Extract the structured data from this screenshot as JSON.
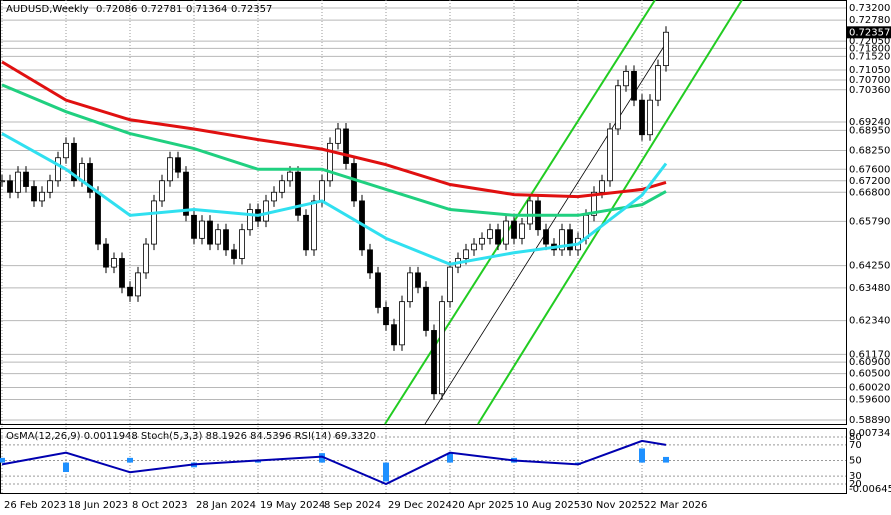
{
  "chart_data": {
    "type": "candlestick",
    "symbol": "AUDUSD,Weekly",
    "ohlc": [
      "0.72086",
      "0.72781",
      "0.71364",
      "0.72357"
    ],
    "close": [
      0.672,
      0.668,
      0.675,
      0.67,
      0.665,
      0.668,
      0.672,
      0.68,
      0.685,
      0.672,
      0.678,
      0.668,
      0.65,
      0.642,
      0.645,
      0.635,
      0.632,
      0.64,
      0.65,
      0.665,
      0.672,
      0.68,
      0.675,
      0.66,
      0.652,
      0.658,
      0.65,
      0.655,
      0.648,
      0.645,
      0.655,
      0.662,
      0.658,
      0.665,
      0.668,
      0.672,
      0.675,
      0.66,
      0.648,
      0.665,
      0.672,
      0.685,
      0.69,
      0.678,
      0.665,
      0.648,
      0.64,
      0.628,
      0.622,
      0.615,
      0.63,
      0.64,
      0.635,
      0.62,
      0.598,
      0.63,
      0.642,
      0.645,
      0.648,
      0.65,
      0.652,
      0.655,
      0.65,
      0.658,
      0.652,
      0.657,
      0.665,
      0.655,
      0.65,
      0.648,
      0.655,
      0.648,
      0.652,
      0.66,
      0.668,
      0.672,
      0.69,
      0.705,
      0.71,
      0.7,
      0.688,
      0.7,
      0.712,
      0.7236
    ],
    "ma_x": [
      0,
      8,
      16,
      24,
      32,
      40,
      48,
      56,
      64,
      72,
      80,
      83
    ],
    "moving_averages": [
      {
        "color": "#e01010",
        "values": [
          0.7133,
          0.7,
          0.6932,
          0.69,
          0.6863,
          0.683,
          0.6776,
          0.6707,
          0.6672,
          0.6665,
          0.669,
          0.6714
        ]
      },
      {
        "color": "#20d080",
        "values": [
          0.7053,
          0.696,
          0.6884,
          0.6832,
          0.676,
          0.676,
          0.669,
          0.662,
          0.66,
          0.66,
          0.6637,
          0.6683
        ]
      },
      {
        "color": "#30e0f0",
        "values": [
          0.6884,
          0.676,
          0.66,
          0.662,
          0.66,
          0.665,
          0.652,
          0.643,
          0.647,
          0.65,
          0.667,
          0.678
        ]
      }
    ],
    "ylim": [
      0.5875,
      0.7348
    ],
    "yticks": [
      {
        "value": 0.732,
        "label": "0.73200"
      },
      {
        "value": 0.7278,
        "label": "0.72780"
      },
      {
        "value": 0.7205,
        "label": "0.72050"
      },
      {
        "value": 0.718,
        "label": "0.71800"
      },
      {
        "value": 0.7152,
        "label": "0.71520"
      },
      {
        "value": 0.7105,
        "label": "0.71050"
      },
      {
        "value": 0.707,
        "label": "0.70700"
      },
      {
        "value": 0.7036,
        "label": "0.70360"
      },
      {
        "value": 0.6924,
        "label": "0.69240"
      },
      {
        "value": 0.6895,
        "label": "0.68950"
      },
      {
        "value": 0.6825,
        "label": "0.68250"
      },
      {
        "value": 0.676,
        "label": "0.67600"
      },
      {
        "value": 0.672,
        "label": "0.67200"
      },
      {
        "value": 0.668,
        "label": "0.66800"
      },
      {
        "value": 0.6579,
        "label": "0.65790"
      },
      {
        "value": 0.6425,
        "label": "0.64250"
      },
      {
        "value": 0.6348,
        "label": "0.63480"
      },
      {
        "value": 0.6234,
        "label": "0.62340"
      },
      {
        "value": 0.6117,
        "label": "0.61170"
      },
      {
        "value": 0.609,
        "label": "0.60900"
      },
      {
        "value": 0.605,
        "label": "0.60500"
      },
      {
        "value": 0.6002,
        "label": "0.60020"
      },
      {
        "value": 0.596,
        "label": "0.59600"
      },
      {
        "value": 0.5889,
        "label": "0.58890"
      }
    ],
    "xticks": [
      {
        "value": 0,
        "label": "26 Feb 2023"
      },
      {
        "value": 8,
        "label": "18 Jun 2023"
      },
      {
        "value": 16,
        "label": "8 Oct 2023"
      },
      {
        "value": 24,
        "label": "28 Jan 2024"
      },
      {
        "value": 32,
        "label": "19 May 2024"
      },
      {
        "value": 40,
        "label": "8 Sep 2024"
      },
      {
        "value": 48,
        "label": "29 Dec 2024"
      },
      {
        "value": 56,
        "label": "20 Apr 2025"
      },
      {
        "value": 64,
        "label": "10 Aug 2025"
      },
      {
        "value": 72,
        "label": "30 Nov 2025"
      },
      {
        "value": 80,
        "label": "22 Mar 2026"
      }
    ],
    "indicator_title": "OsMA(12,26,9) 0.0011948  Stoch(5,3,3) 88.1926 84.5396  RSI(14) 69.3320",
    "osma_lim": [
      -0.006457,
      0.0073408
    ],
    "osma_ticks": [
      0.0073408,
      -0.006457
    ],
    "osma": [
      0.001,
      -0.002,
      0.001,
      -0.001,
      0.0005,
      0.002,
      -0.004,
      0.002,
      0.001,
      -0.0005,
      0.003,
      0.0012
    ],
    "rsi_lim": [
      8.5,
      91.5
    ],
    "rsi_ticks": [
      80,
      70,
      50,
      30,
      20
    ],
    "rsi": [
      45,
      60,
      35,
      45,
      50,
      55,
      20,
      60,
      50,
      45,
      75,
      70
    ]
  }
}
